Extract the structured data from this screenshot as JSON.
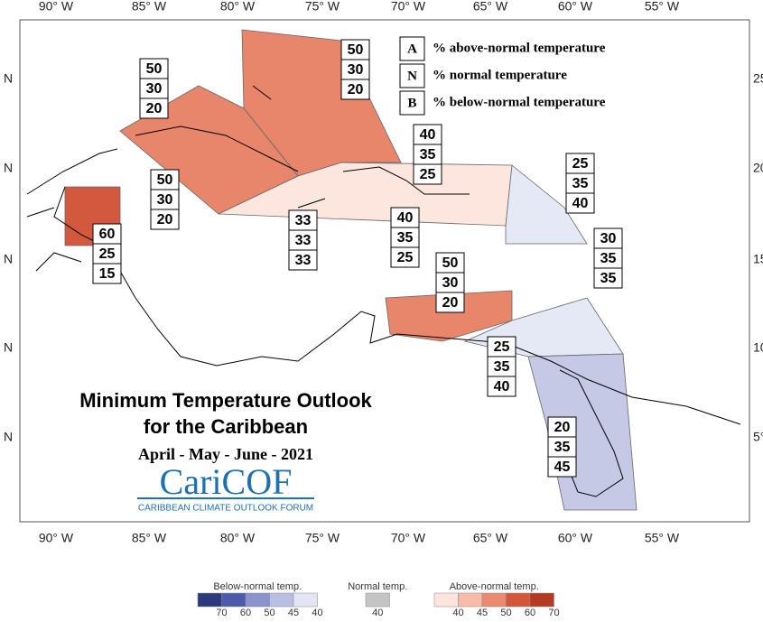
{
  "title": "Minimum Temperature Outlook",
  "title2": "for the Caribbean",
  "period": "April - May - June - 2021",
  "logo": {
    "name": "CariCOF",
    "tagline": "CARIBBEAN CLIMATE OUTLOOK FORUM"
  },
  "key": [
    {
      "letter": "A",
      "text": "% above-normal temperature"
    },
    {
      "letter": "N",
      "text": "% normal temperature"
    },
    {
      "letter": "B",
      "text": "% below-normal temperature"
    }
  ],
  "lon_labels": [
    "90° W",
    "85° W",
    "80° W",
    "75° W",
    "70° W",
    "65° W",
    "60° W",
    "55° W"
  ],
  "lat_labels_left": [
    "N",
    "N",
    "N",
    "N",
    "N"
  ],
  "lat_labels_right": [
    "25",
    "20",
    "15",
    "10",
    "5°"
  ],
  "regions": [
    {
      "color": "#e8866c",
      "boxes": [
        [
          50,
          30,
          20
        ]
      ]
    },
    {
      "color": "#e8866c",
      "boxes": [
        [
          50,
          30,
          20
        ],
        [
          50,
          30,
          20
        ]
      ]
    },
    {
      "color": "#d2593e",
      "boxes": [
        [
          60,
          25,
          15
        ]
      ]
    },
    {
      "boxes": [
        [
          33,
          33,
          33
        ]
      ]
    },
    {
      "color": "#fce6dd",
      "boxes": [
        [
          40,
          35,
          25
        ],
        [
          40,
          35,
          25
        ]
      ]
    },
    {
      "color": "#e5e8f5",
      "boxes": [
        [
          25,
          35,
          40
        ]
      ]
    },
    {
      "boxes": [
        [
          30,
          35,
          35
        ]
      ]
    },
    {
      "color": "#e8866c",
      "boxes": [
        [
          50,
          30,
          20
        ]
      ]
    },
    {
      "color": "#e5e8f5",
      "boxes": [
        [
          25,
          35,
          40
        ]
      ]
    },
    {
      "color": "#c5c9e6",
      "boxes": [
        [
          20,
          35,
          45
        ]
      ]
    }
  ],
  "colorbar": {
    "below": {
      "title": "Below-normal temp.",
      "colors": [
        "#2b3a7a",
        "#4c5caa",
        "#8b93cc",
        "#b9bee3",
        "#e3e5f4"
      ],
      "ticks": [
        "70",
        "60",
        "50",
        "45",
        "40"
      ]
    },
    "normal": {
      "title": "Normal temp.",
      "colors": [
        "#c4c4c4"
      ],
      "ticks": [
        "40"
      ]
    },
    "above": {
      "title": "Above-normal temp.",
      "colors": [
        "#fde4dc",
        "#f7bba8",
        "#ea8b70",
        "#d4573a",
        "#b53a22"
      ],
      "ticks": [
        "40",
        "45",
        "50",
        "60",
        "70"
      ]
    }
  }
}
